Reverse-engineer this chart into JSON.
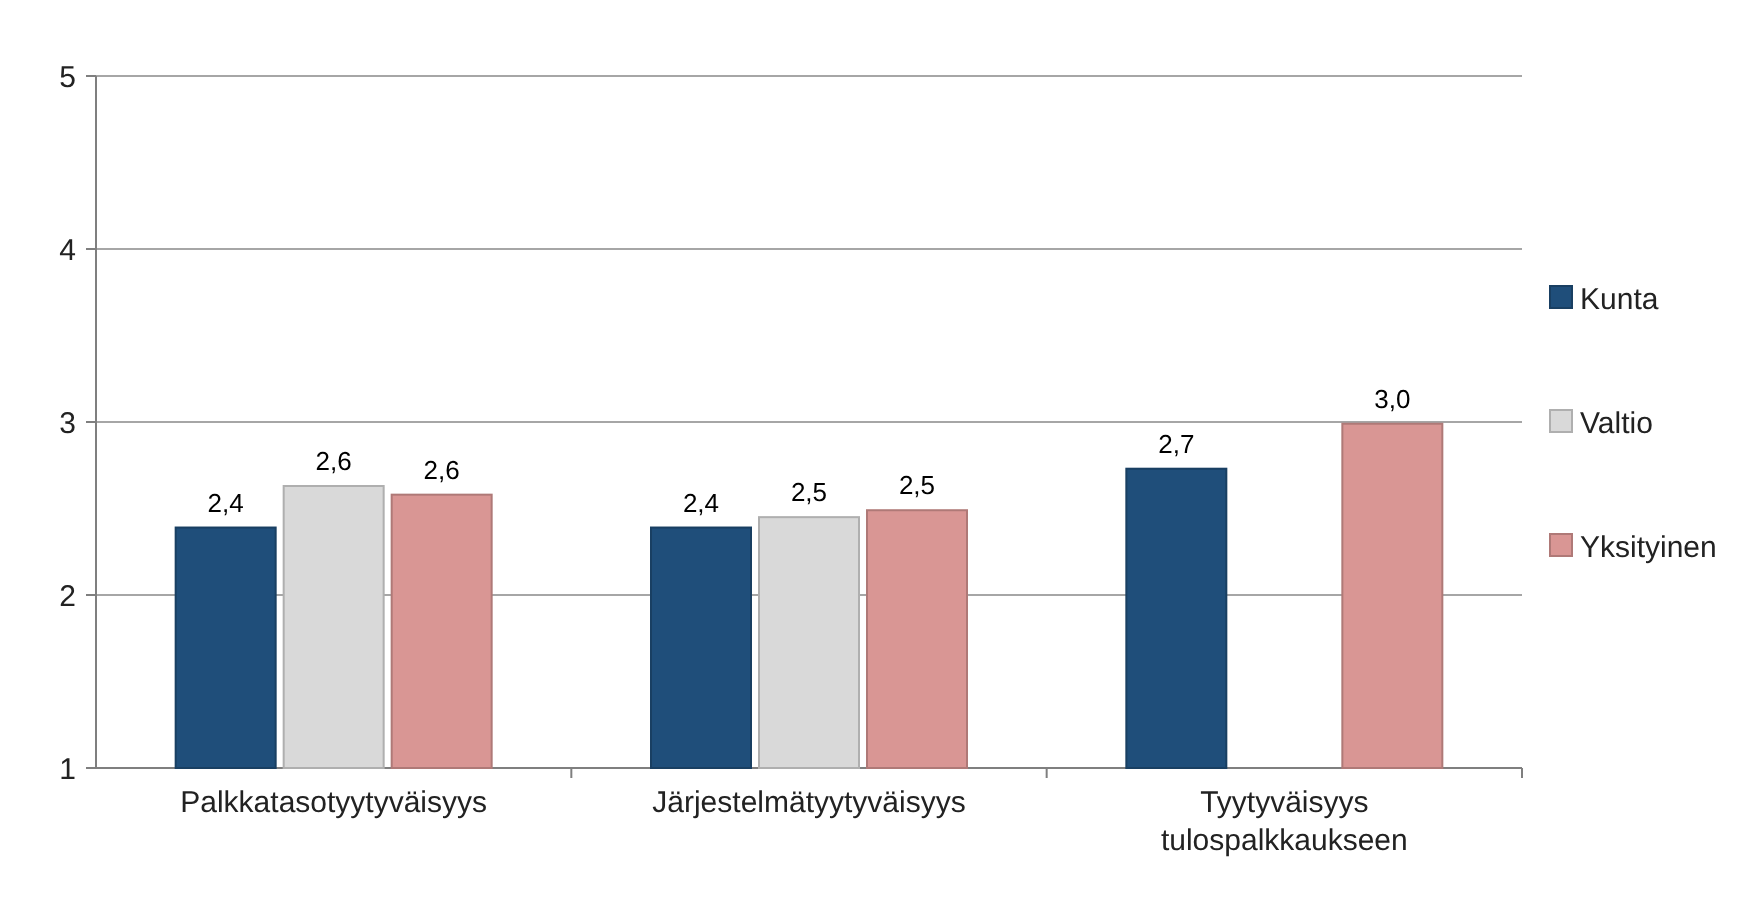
{
  "chart_data": {
    "type": "bar",
    "categories": [
      "Palkkatasotyytyväisyys",
      "Järjestelmätyytyväisyys",
      "Tyytyväisyys tulospalkkaukseen"
    ],
    "series": [
      {
        "name": "Kunta",
        "color": "#1f4e7a",
        "values": [
          2.39,
          2.39,
          2.73
        ],
        "value_labels": [
          "2,4",
          "2,4",
          "2,7"
        ]
      },
      {
        "name": "Valtio",
        "color": "#d9d9d9",
        "values": [
          2.63,
          2.45,
          null
        ],
        "value_labels": [
          "2,6",
          "2,5",
          null
        ]
      },
      {
        "name": "Yksityinen",
        "color": "#d99694",
        "values": [
          2.58,
          2.49,
          2.99
        ],
        "value_labels": [
          "2,6",
          "2,5",
          "3,0"
        ]
      }
    ],
    "ylim": [
      1,
      5
    ],
    "yticks": [
      1,
      2,
      3,
      4,
      5
    ],
    "grid": "y",
    "legend": "right"
  }
}
